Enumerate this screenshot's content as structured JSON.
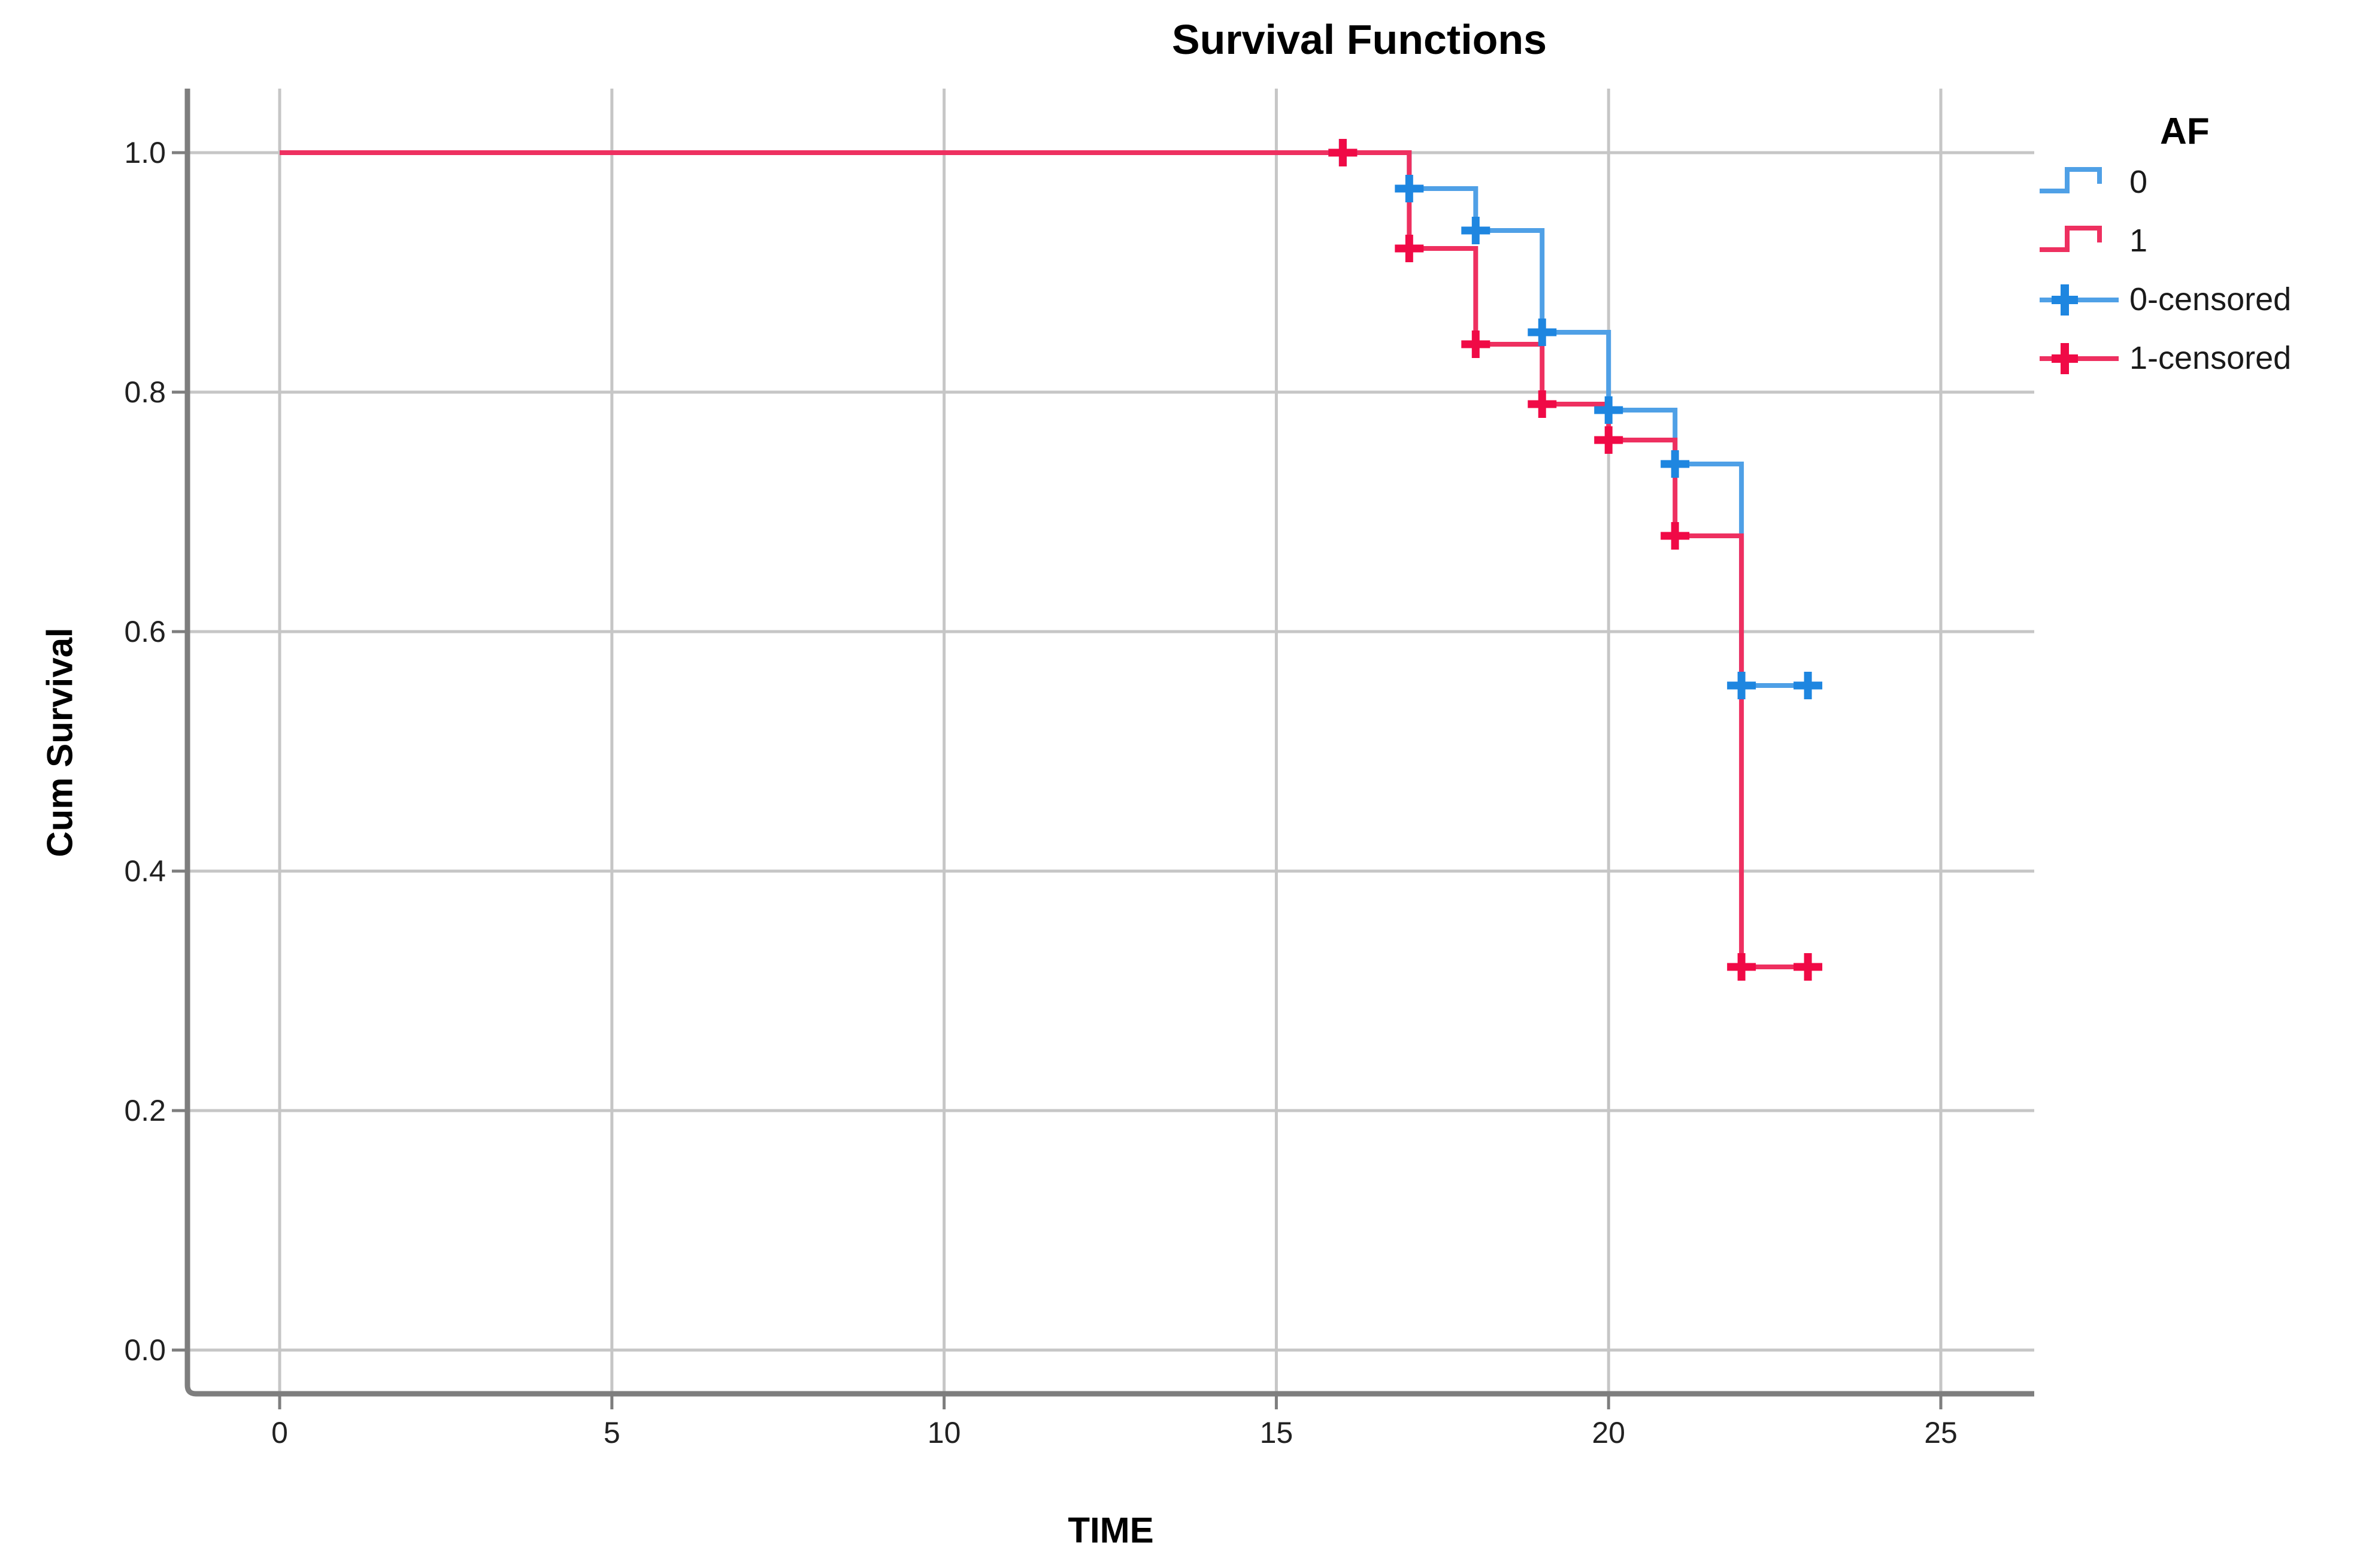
{
  "chart_data": {
    "type": "line",
    "subtype": "kaplan-meier-step",
    "title": "Survival Functions",
    "xlabel": "TIME",
    "ylabel": "Cum Survival",
    "xlim": [
      0,
      25
    ],
    "ylim": [
      0.0,
      1.0
    ],
    "grid": true,
    "x_ticks": [
      "0",
      "5",
      "10",
      "15",
      "20",
      "25"
    ],
    "x_tick_values": [
      0,
      5,
      10,
      15,
      20,
      25
    ],
    "y_ticks": [
      "0.0",
      "0.2",
      "0.4",
      "0.6",
      "0.8",
      "1.0"
    ],
    "y_tick_values": [
      0.0,
      0.2,
      0.4,
      0.6,
      0.8,
      1.0
    ],
    "colors": {
      "axis": "#7E7E7E",
      "grid": "#C6C6C6",
      "tick_text": "#212121",
      "title_text": "#000000"
    },
    "series": [
      {
        "name": "0",
        "color": "#4FA0E6",
        "censor_color": "#1E86E0",
        "path": [
          [
            0,
            1.0
          ],
          [
            17,
            1.0
          ],
          [
            17,
            0.97
          ],
          [
            18,
            0.97
          ],
          [
            18,
            0.935
          ],
          [
            19,
            0.935
          ],
          [
            19,
            0.85
          ],
          [
            20,
            0.85
          ],
          [
            20,
            0.785
          ],
          [
            21,
            0.785
          ],
          [
            21,
            0.74
          ],
          [
            22,
            0.74
          ],
          [
            22,
            0.555
          ],
          [
            23,
            0.555
          ]
        ],
        "censors": [
          [
            16,
            1.0
          ],
          [
            17,
            0.97
          ],
          [
            18,
            0.935
          ],
          [
            19,
            0.85
          ],
          [
            20,
            0.785
          ],
          [
            21,
            0.74
          ],
          [
            22,
            0.555
          ],
          [
            23,
            0.555
          ]
        ]
      },
      {
        "name": "1",
        "color": "#EE3060",
        "censor_color": "#F00A46",
        "path": [
          [
            0,
            1.0
          ],
          [
            17,
            1.0
          ],
          [
            17,
            0.92
          ],
          [
            18,
            0.92
          ],
          [
            18,
            0.84
          ],
          [
            19,
            0.84
          ],
          [
            19,
            0.79
          ],
          [
            20,
            0.79
          ],
          [
            20,
            0.76
          ],
          [
            21,
            0.76
          ],
          [
            21,
            0.68
          ],
          [
            22,
            0.68
          ],
          [
            22,
            0.32
          ],
          [
            23,
            0.32
          ]
        ],
        "censors": [
          [
            16,
            1.0
          ],
          [
            17,
            0.92
          ],
          [
            18,
            0.84
          ],
          [
            19,
            0.79
          ],
          [
            20,
            0.76
          ],
          [
            21,
            0.68
          ],
          [
            22,
            0.32
          ],
          [
            23,
            0.32
          ]
        ]
      }
    ],
    "legend": {
      "title": "AF",
      "position": "right",
      "items": [
        {
          "label": "0",
          "glyph": "step",
          "series": 0
        },
        {
          "label": "1",
          "glyph": "step",
          "series": 1
        },
        {
          "label": "0-censored",
          "glyph": "censor",
          "series": 0
        },
        {
          "label": "1-censored",
          "glyph": "censor",
          "series": 1
        }
      ]
    }
  }
}
